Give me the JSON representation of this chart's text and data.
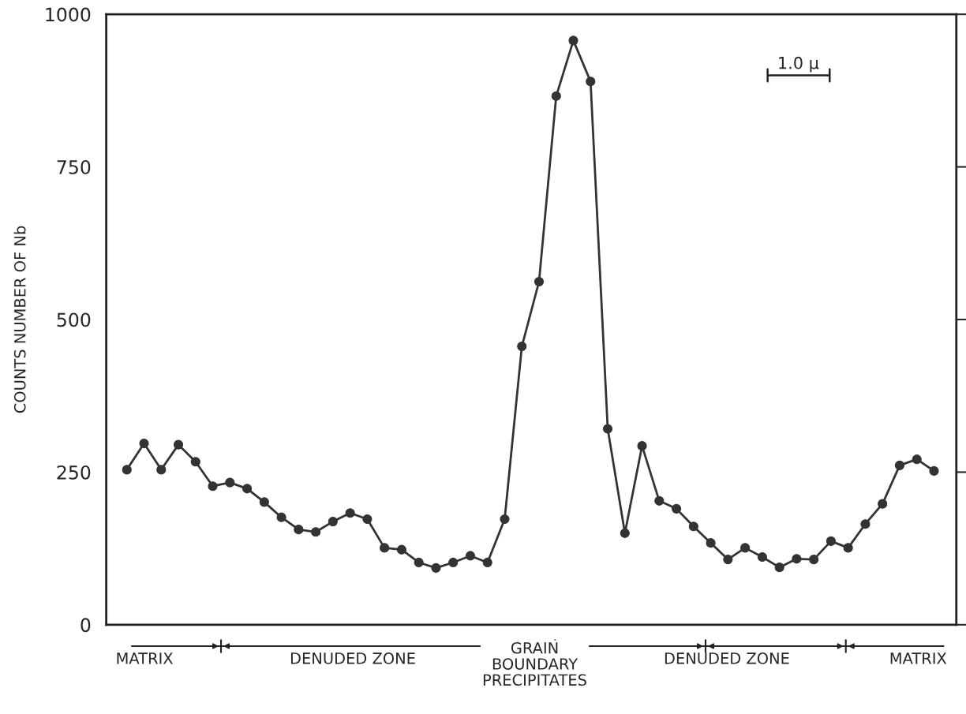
{
  "chart_data": {
    "type": "line",
    "ylabel": "COUNTS NUMBER OF Nb",
    "categories": [
      null,
      null,
      null,
      null,
      null,
      null,
      null,
      null,
      null,
      null,
      null,
      null,
      null,
      null,
      null,
      null,
      null,
      null,
      null,
      null,
      null,
      null,
      null,
      null,
      null,
      null,
      null,
      null,
      null,
      null,
      null,
      null,
      null,
      null,
      null,
      null,
      null,
      null,
      null,
      null,
      null,
      null,
      null,
      null,
      null,
      null,
      null,
      null
    ],
    "series": [
      {
        "color": "#333333",
        "values": [
          254,
          297,
          254,
          295,
          267,
          227,
          233,
          223,
          201,
          176,
          156,
          152,
          169,
          183,
          173,
          126,
          123,
          102,
          93,
          102,
          113,
          102,
          173,
          456,
          562,
          866,
          957,
          890,
          321,
          150,
          293,
          203,
          190,
          161,
          134,
          107,
          126,
          111,
          94,
          108,
          107,
          137,
          126,
          165,
          198,
          261,
          271,
          252
        ]
      }
    ],
    "ylim": [
      0,
      1000
    ],
    "yticks": [
      0,
      250,
      500,
      750,
      1000
    ],
    "marker": "circle",
    "line_style": "solid",
    "grid": false,
    "annotations": [
      "MATRIX",
      "DENUDED ZONE",
      "GRAIN\nBOUNDARY\nPRECIPITATES",
      "DENUDED ZONE",
      "MATRIX",
      "1.0 μ"
    ]
  }
}
